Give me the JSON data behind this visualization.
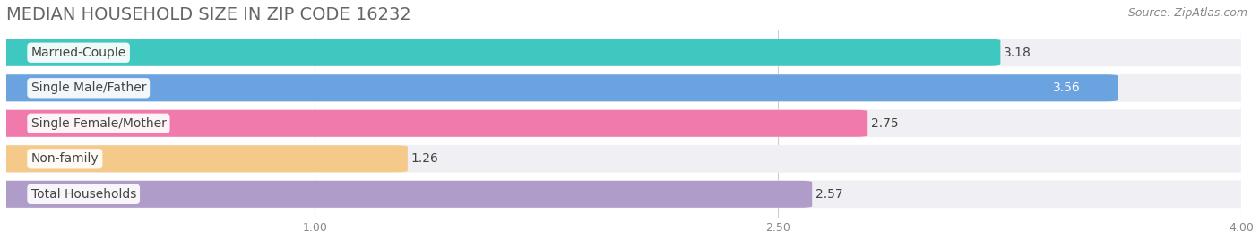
{
  "title": "MEDIAN HOUSEHOLD SIZE IN ZIP CODE 16232",
  "source": "Source: ZipAtlas.com",
  "categories": [
    "Married-Couple",
    "Single Male/Father",
    "Single Female/Mother",
    "Non-family",
    "Total Households"
  ],
  "values": [
    3.18,
    3.56,
    2.75,
    1.26,
    2.57
  ],
  "bar_colors": [
    "#3ec8c0",
    "#6ba3e0",
    "#f07aab",
    "#f5c98a",
    "#b09cc8"
  ],
  "xlim": [
    0,
    4.0
  ],
  "xmin": 0.0,
  "xticks": [
    1.0,
    2.5,
    4.0
  ],
  "background_color": "#ffffff",
  "row_bg_color": "#f0f0f4",
  "title_fontsize": 14,
  "label_fontsize": 10,
  "value_fontsize": 10,
  "source_fontsize": 9
}
